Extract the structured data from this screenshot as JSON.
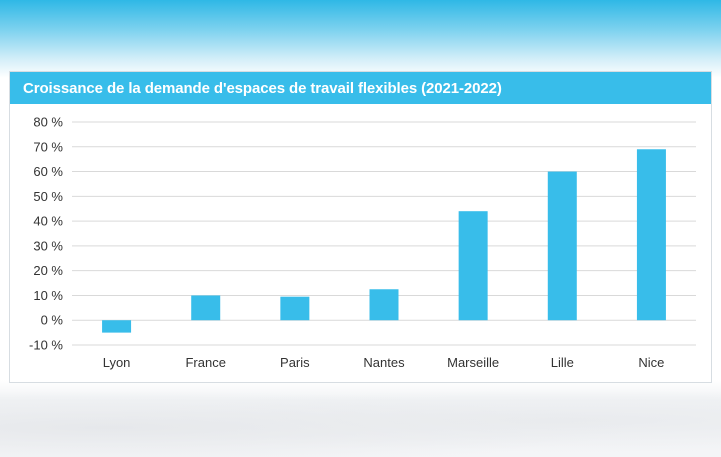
{
  "chart_data": {
    "type": "bar",
    "title": "Croissance de la demande d'espaces de travail flexibles (2021-2022)",
    "xlabel": "",
    "ylabel": "",
    "categories": [
      "Lyon",
      "France",
      "Paris",
      "Nantes",
      "Marseille",
      "Lille",
      "Nice"
    ],
    "values": [
      -5,
      10,
      9.5,
      12.5,
      44,
      60,
      69
    ],
    "ylim": [
      -10,
      80
    ],
    "yticks": [
      -10,
      0,
      10,
      20,
      30,
      40,
      50,
      60,
      70,
      80
    ],
    "ytick_labels": [
      "-10 %",
      "0 %",
      "10 %",
      "20 %",
      "30 %",
      "40 %",
      "50 %",
      "60 %",
      "70 %",
      "80 %"
    ],
    "grid": true,
    "bar_color": "#38bdea",
    "grid_color": "#d9d9d9"
  }
}
